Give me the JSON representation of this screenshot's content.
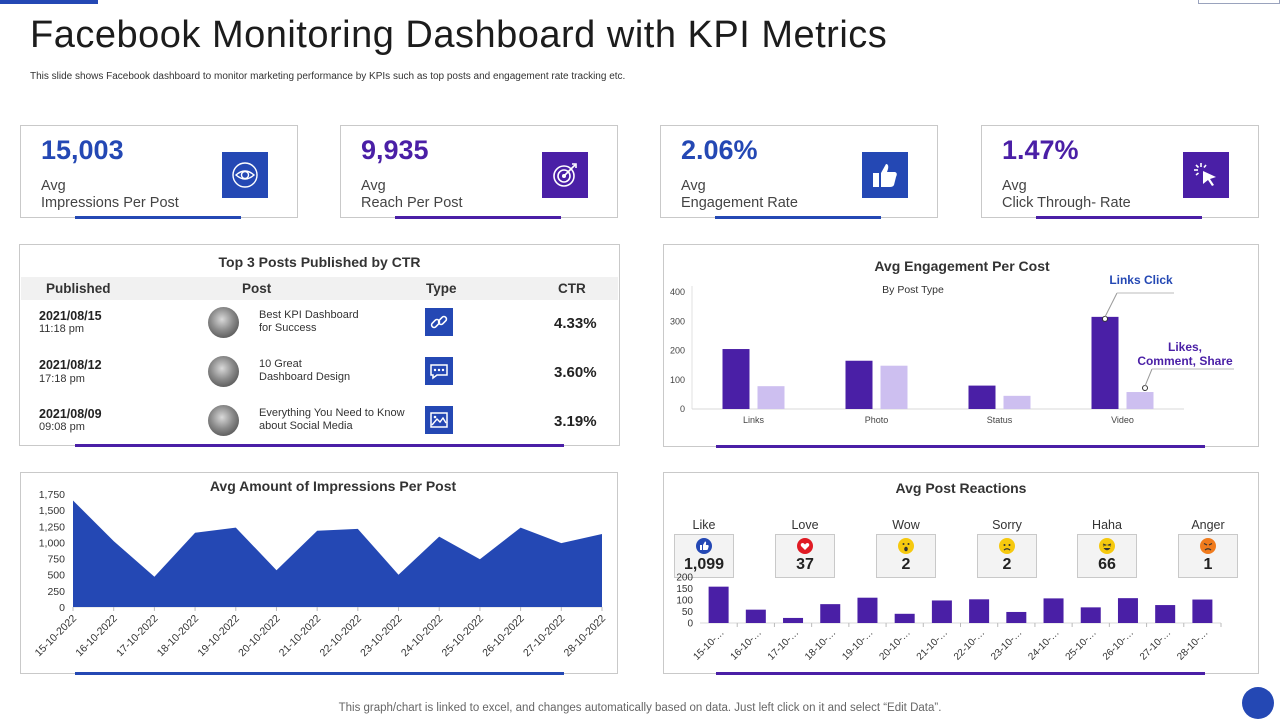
{
  "header": {
    "title": "Facebook Monitoring Dashboard with KPI Metrics",
    "subtitle": "This slide shows Facebook dashboard to monitor marketing performance by KPIs such as top posts and engagement rate tracking etc."
  },
  "kpis": [
    {
      "value": "15,003",
      "label_line1": "Avg",
      "label_line2": "Impressions Per Post",
      "icon": "eye-target-icon",
      "color": "#2448b4"
    },
    {
      "value": "9,935",
      "label_line1": "Avg",
      "label_line2": "Reach Per Post",
      "icon": "target-icon",
      "color": "#4a1fa6"
    },
    {
      "value": "2.06%",
      "label_line1": "Avg",
      "label_line2": "Engagement Rate",
      "icon": "thumbs-up-icon",
      "color": "#2448b4"
    },
    {
      "value": "1.47%",
      "label_line1": "Avg",
      "label_line2": "Click Through- Rate",
      "icon": "click-cursor-icon",
      "color": "#4a1fa6"
    }
  ],
  "top_posts": {
    "title": "Top 3 Posts Published by CTR",
    "headers": [
      "Published",
      "Post",
      "Type",
      "CTR"
    ],
    "rows": [
      {
        "date": "2021/08/15",
        "time": "11:18 pm",
        "post_line1": "Best KPI Dashboard",
        "post_line2": "for Success",
        "type_icon": "link-icon",
        "ctr": "4.33%"
      },
      {
        "date": "2021/08/12",
        "time": "17:18 pm",
        "post_line1": "10 Great",
        "post_line2": "Dashboard Design",
        "type_icon": "chat-icon",
        "ctr": "3.60%"
      },
      {
        "date": "2021/08/09",
        "time": "09:08 pm",
        "post_line1": "Everything You Need to Know",
        "post_line2": "about Social Media",
        "type_icon": "image-icon",
        "ctr": "3.19%"
      }
    ]
  },
  "reactions": {
    "title": "Avg Post Reactions",
    "items": [
      {
        "name": "Like",
        "value": "1,099",
        "icon": "like-icon",
        "color": "#2448b4"
      },
      {
        "name": "Love",
        "value": "37",
        "icon": "love-icon",
        "color": "#e01b24"
      },
      {
        "name": "Wow",
        "value": "2",
        "icon": "wow-icon",
        "color": "#f6c90e"
      },
      {
        "name": "Sorry",
        "value": "2",
        "icon": "sorry-icon",
        "color": "#f6c90e"
      },
      {
        "name": "Haha",
        "value": "66",
        "icon": "haha-icon",
        "color": "#f6c90e"
      },
      {
        "name": "Anger",
        "value": "1",
        "icon": "anger-icon",
        "color": "#f07b1d"
      }
    ]
  },
  "footer": {
    "note": "This graph/chart is linked to excel, and changes automatically based on data. Just left click on it and select “Edit Data”."
  },
  "chart_data": [
    {
      "id": "engagement",
      "type": "bar",
      "title": "Avg Engagement Per Cost",
      "subtitle": "By Post Type",
      "categories": [
        "Links",
        "Photo",
        "Status",
        "Video"
      ],
      "series": [
        {
          "name": "Links Click",
          "values": [
            205,
            165,
            80,
            315
          ],
          "color": "#4a1fa6"
        },
        {
          "name": "Likes, Comment, Share",
          "values": [
            78,
            148,
            45,
            58
          ],
          "color": "#cdbff0"
        }
      ],
      "annotations": [
        "Links Click",
        "Likes,",
        "Comment, Share"
      ],
      "ylim": [
        0,
        400
      ],
      "yticks": [
        0,
        100,
        200,
        300,
        400
      ]
    },
    {
      "id": "impressions",
      "type": "area",
      "title": "Avg Amount of Impressions Per Post",
      "categories": [
        "15-10-2022",
        "16-10-2022",
        "17-10-2022",
        "18-10-2022",
        "19-10-2022",
        "20-10-2022",
        "21-10-2022",
        "22-10-2022",
        "23-10-2022",
        "24-10-2022",
        "25-10-2022",
        "26-10-2022",
        "27-10-2022",
        "28-10-2022"
      ],
      "values": [
        1650,
        1020,
        470,
        1150,
        1230,
        570,
        1180,
        1210,
        500,
        1090,
        740,
        1230,
        990,
        1130
      ],
      "ylim": [
        0,
        1750
      ],
      "yticks": [
        "0",
        "250",
        "500",
        "750",
        "1,000",
        "1,250",
        "1,500",
        "1,750"
      ],
      "color": "#2448b4"
    },
    {
      "id": "reactions",
      "type": "bar",
      "categories": [
        "15-10-…",
        "16-10-…",
        "17-10-…",
        "18-10-…",
        "19-10-…",
        "20-10-…",
        "21-10-…",
        "22-10-…",
        "23-10-…",
        "24-10-…",
        "25-10-…",
        "26-10-…",
        "27-10-…",
        "28-10-…"
      ],
      "values": [
        158,
        58,
        22,
        82,
        110,
        40,
        98,
        103,
        48,
        107,
        68,
        108,
        78,
        102
      ],
      "ylim": [
        0,
        200
      ],
      "yticks": [
        0,
        50,
        100,
        150,
        200
      ],
      "color": "#4a1fa6"
    }
  ]
}
